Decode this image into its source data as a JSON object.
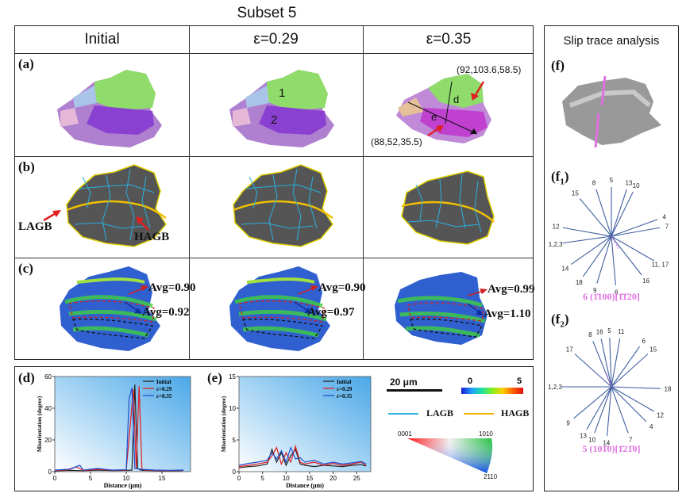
{
  "title": "Subset 5",
  "columns": [
    "Initial",
    "ε=0.29",
    "ε=0.35"
  ],
  "row_labels": [
    "(a)",
    "(b)",
    "(c)"
  ],
  "row_a": {
    "grain1": "1",
    "grain2": "2",
    "coord_top": "(92,103.6,58.5)",
    "coord_bottom": "(88,52,35.5)",
    "label_d": "d",
    "label_e": "e"
  },
  "row_b": {
    "lagb": "LAGB",
    "hagb": "HAGB"
  },
  "row_c": {
    "initial": {
      "top": "Avg=0.90",
      "bottom": "Avg=0.92"
    },
    "eps029": {
      "top": "Avg=0.90",
      "bottom": "Avg=0.97"
    },
    "eps035": {
      "top": "Avg=0.99",
      "bottom": "Avg=1.10"
    }
  },
  "slip": {
    "title": "Slip trace analysis",
    "f": "(f)",
    "f1": "(f",
    "f1_sub": "1",
    "f1_close": ")",
    "f2": "(f",
    "f2_sub": "2",
    "f2_close": ")",
    "f1_caption": "6 (1̄100)[1̄1̄20]",
    "f2_caption": "5 (101̄0)[1̄21̄0]",
    "f1_labels": [
      "8",
      "5",
      "13",
      "10",
      "15",
      "4",
      "7",
      "12",
      "1,2,3",
      "14",
      "18",
      "9",
      "6",
      "16",
      "11, 17"
    ],
    "f2_labels": [
      "8",
      "16",
      "5",
      "11",
      "17",
      "6",
      "15",
      "1,2,3",
      "18",
      "9",
      "12",
      "4",
      "13",
      "10",
      "14",
      "7"
    ]
  },
  "legend": {
    "scale": "20 μm",
    "cmin": "0",
    "cmax": "5",
    "lagb": "LAGB",
    "hagb": "HAGB",
    "ipf_0001": "0001",
    "ipf_1010": "1010",
    "ipf_2110": "2110"
  },
  "colors": {
    "lagb": "#2ab0e0",
    "hagb": "#f0b400",
    "initial": "#222222",
    "eps029": "#e02020",
    "eps035": "#2050d0",
    "slip_pink": "#e070e0",
    "slip_line": "#4060a0"
  },
  "chart_data": [
    {
      "type": "line",
      "panel": "(d)",
      "xlabel": "Distance (μm)",
      "ylabel": "Misorientation (degree)",
      "xlim": [
        0,
        19
      ],
      "ylim": [
        0,
        60
      ],
      "xticks": [
        0,
        5,
        10,
        15
      ],
      "yticks": [
        0,
        20,
        40,
        60
      ],
      "legend": [
        "Initial",
        "ε=0.29",
        "ε=0.35"
      ],
      "series": [
        {
          "name": "Initial",
          "x": [
            0,
            2,
            4,
            6,
            8,
            10,
            10.8,
            11.2,
            11.6,
            12,
            12.4,
            14,
            16,
            18
          ],
          "y": [
            0.5,
            0.8,
            0.6,
            1.0,
            0.7,
            0.8,
            1,
            55,
            2,
            1,
            0.8,
            0.6,
            0.5,
            0.7
          ]
        },
        {
          "name": "ε=0.29",
          "x": [
            0,
            2,
            3,
            4,
            6,
            8,
            10,
            11,
            11.4,
            11.8,
            12.2,
            12.6,
            14,
            16,
            18
          ],
          "y": [
            0.8,
            1.2,
            3,
            0.8,
            1.5,
            0.9,
            1,
            52,
            2,
            54,
            1.5,
            1,
            0.8,
            0.6,
            1
          ]
        },
        {
          "name": "ε=0.35",
          "x": [
            0,
            2,
            3.5,
            4,
            6,
            8,
            10,
            10.4,
            10.8,
            11.2,
            12,
            14,
            16,
            18
          ],
          "y": [
            1,
            1.5,
            4,
            1,
            2,
            1,
            1.2,
            46,
            53,
            2,
            1.5,
            1,
            0.8,
            1
          ]
        }
      ]
    },
    {
      "type": "line",
      "panel": "(e)",
      "xlabel": "Distance (μm)",
      "ylabel": "Misorientation (degree)",
      "xlim": [
        0,
        28
      ],
      "ylim": [
        0,
        15
      ],
      "xticks": [
        0,
        5,
        10,
        15,
        20,
        25
      ],
      "yticks": [
        0,
        5,
        10,
        15
      ],
      "legend": [
        "Initial",
        "ε=0.29",
        "ε=0.35"
      ],
      "series": [
        {
          "name": "Initial",
          "x": [
            0,
            2,
            4,
            6,
            7,
            8,
            9,
            10,
            11,
            12,
            13,
            14,
            16,
            18,
            20,
            22,
            24,
            26,
            27
          ],
          "y": [
            0.6,
            0.8,
            0.9,
            1.2,
            3.5,
            1.5,
            3,
            1,
            2.5,
            3.5,
            1.2,
            1,
            0.8,
            1,
            0.9,
            0.8,
            1,
            1.1,
            0.9
          ]
        },
        {
          "name": "ε=0.29",
          "x": [
            0,
            2,
            4,
            6,
            7,
            8,
            9,
            10,
            11,
            12,
            13,
            14,
            16,
            18,
            20,
            22,
            24,
            26,
            27
          ],
          "y": [
            0.8,
            1,
            1.2,
            1.5,
            2.5,
            3.8,
            1.2,
            3,
            1.5,
            4,
            1.5,
            1.2,
            1.5,
            1,
            1.3,
            1,
            1.2,
            1.5,
            1
          ]
        },
        {
          "name": "ε=0.35",
          "x": [
            0,
            2,
            4,
            6,
            7,
            8,
            9,
            10,
            11,
            12,
            13,
            14,
            16,
            18,
            20,
            22,
            24,
            26,
            27
          ],
          "y": [
            1,
            1.3,
            1.5,
            1.8,
            3,
            2,
            3.3,
            1.5,
            3.8,
            2,
            2.2,
            1.5,
            1.8,
            1.2,
            1.5,
            1.2,
            1.4,
            1.6,
            1.2
          ]
        }
      ]
    }
  ]
}
